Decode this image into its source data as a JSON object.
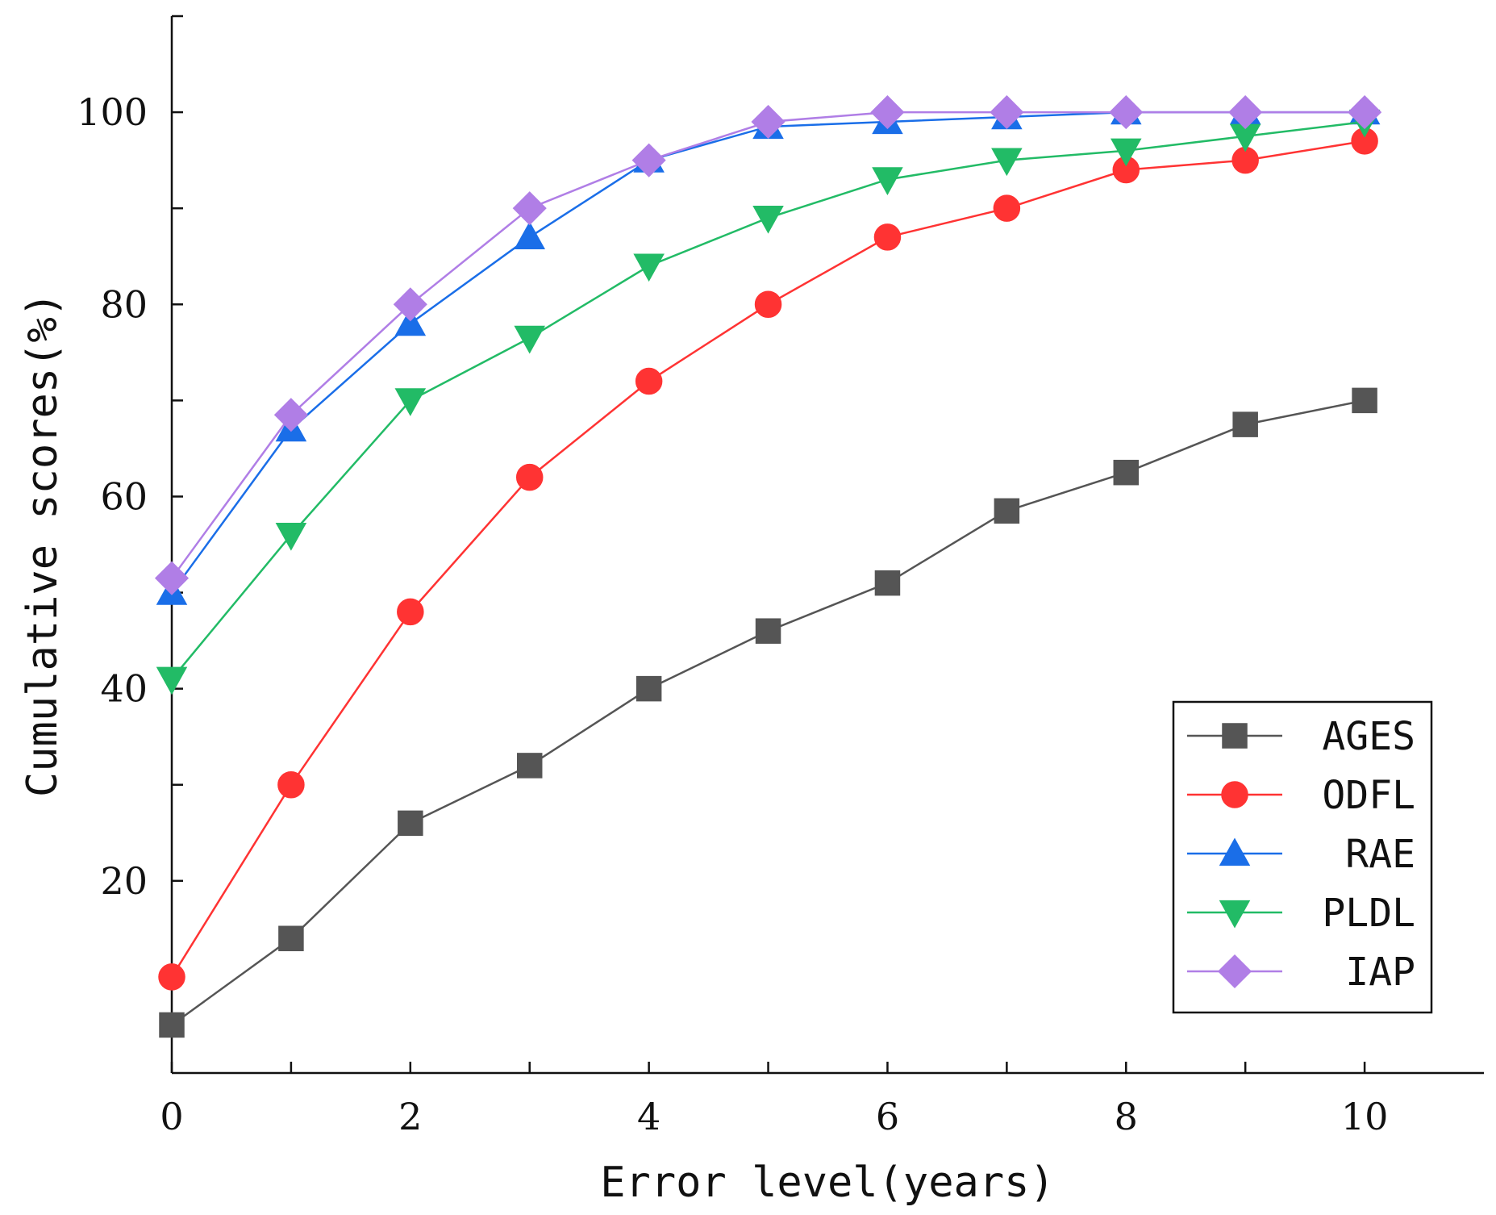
{
  "chart_data": {
    "type": "line",
    "title": "",
    "xlabel": "Error level(years)",
    "ylabel": "Cumulative scores(%)",
    "x": [
      0,
      1,
      2,
      3,
      4,
      5,
      6,
      7,
      8,
      9,
      10
    ],
    "xlim": [
      0,
      11
    ],
    "ylim": [
      0,
      110
    ],
    "xticks": [
      0,
      2,
      4,
      6,
      8,
      10
    ],
    "yticks": [
      20,
      40,
      60,
      80,
      100
    ],
    "grid": false,
    "legend_position": "bottom-right",
    "series": [
      {
        "name": "AGES",
        "color": "#555555",
        "marker": "square",
        "values": [
          5,
          14,
          26,
          32,
          40,
          46,
          51,
          58.5,
          62.5,
          67.5,
          70
        ]
      },
      {
        "name": "ODFL",
        "color": "#ff3333",
        "marker": "circle",
        "values": [
          10,
          30,
          48,
          62,
          72,
          80,
          87,
          90,
          94,
          95,
          97
        ]
      },
      {
        "name": "RAE",
        "color": "#1a6ee8",
        "marker": "triangle-up",
        "values": [
          50,
          67,
          78,
          87,
          95,
          98.5,
          99,
          99.5,
          100,
          100,
          100
        ]
      },
      {
        "name": "PLDL",
        "color": "#22bb66",
        "marker": "triangle-down",
        "values": [
          41,
          56,
          70,
          76.5,
          84,
          89,
          93,
          95,
          96,
          97.5,
          99
        ]
      },
      {
        "name": "IAP",
        "color": "#b07ee6",
        "marker": "diamond",
        "values": [
          51.5,
          68.5,
          80,
          90,
          95,
          99,
          100,
          100,
          100,
          100,
          100
        ]
      }
    ]
  }
}
